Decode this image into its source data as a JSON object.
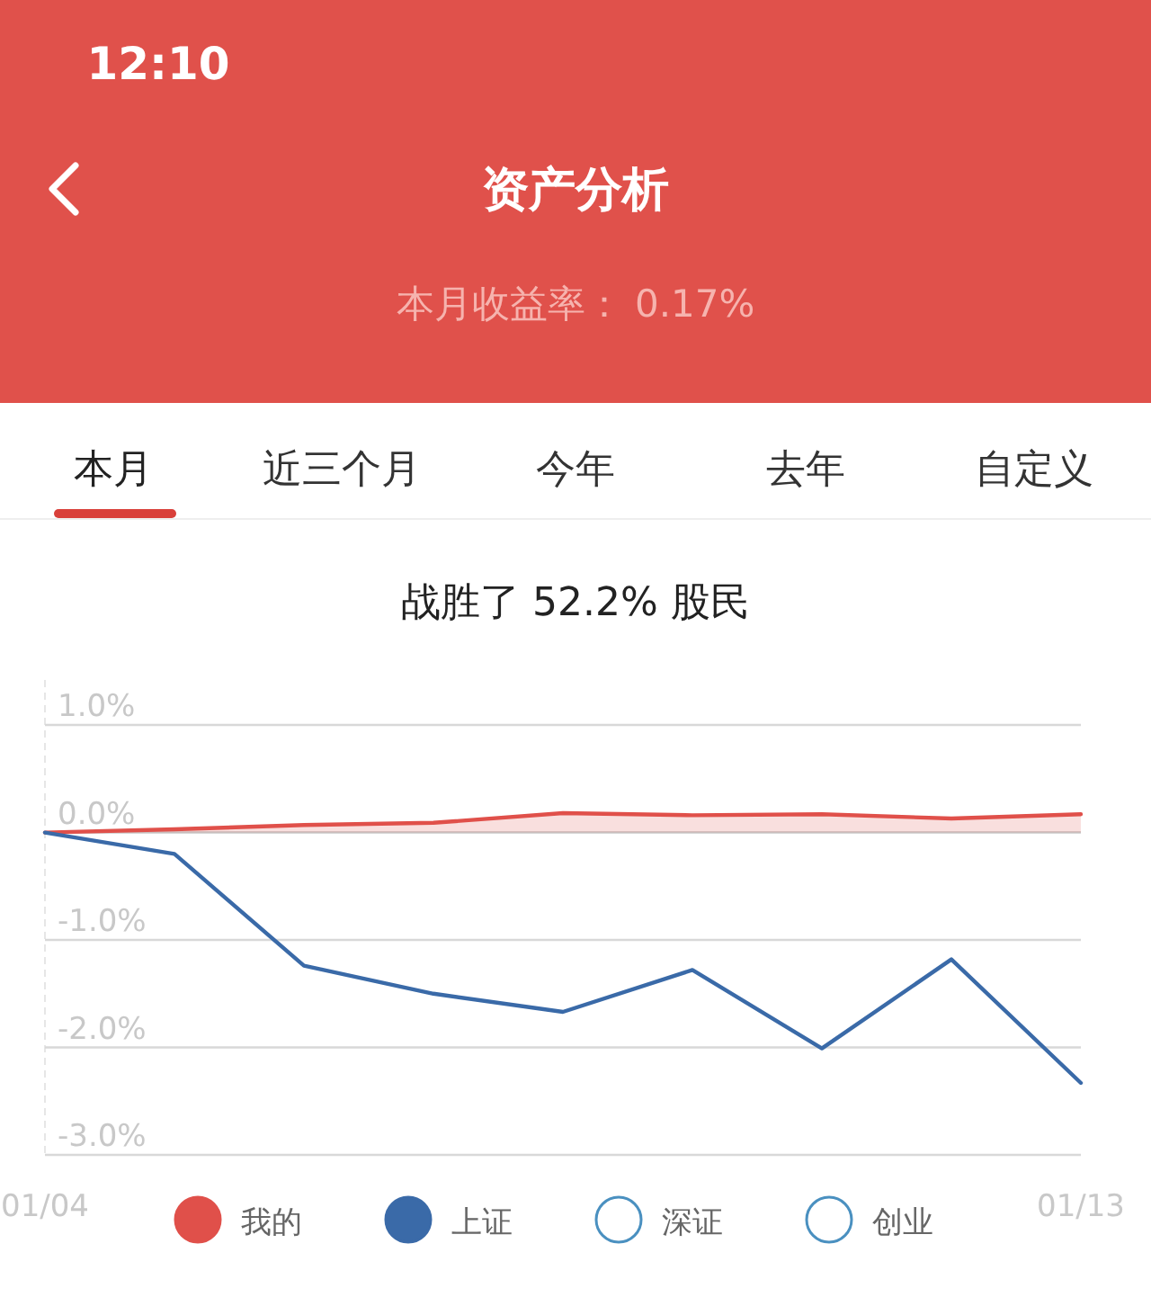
{
  "chart_data": {
    "type": "line",
    "title": "战胜了 52.2% 股民",
    "annotations": [
      "12:10",
      "资产分析",
      "本月收益率： 0.17%",
      "本月",
      "近三个月",
      "今年",
      "去年",
      "自定义"
    ],
    "categories": [
      "01/04",
      null,
      null,
      null,
      null,
      null,
      null,
      null,
      "01/13"
    ],
    "series": [
      {
        "name": "我的",
        "type": "area",
        "color": "#e0504a",
        "values": [
          0,
          0.03,
          0.07,
          0.09,
          0.18,
          0.16,
          0.17,
          0.13,
          0.17
        ]
      },
      {
        "name": "上证",
        "color": "#3a6aa8",
        "values": [
          0,
          -0.2,
          -1.24,
          -1.5,
          -1.67,
          -1.28,
          -2.01,
          -1.18,
          -2.33
        ]
      },
      {
        "name": "深证",
        "color": "#4a90c0",
        "values": [
          null,
          null,
          null,
          null,
          null,
          null,
          null,
          null,
          null
        ]
      },
      {
        "name": "创业",
        "color": "#4a90c0",
        "values": [
          null,
          null,
          null,
          null,
          null,
          null,
          null,
          null,
          null
        ]
      }
    ],
    "ylim": [
      -3,
      1
    ],
    "yticks": [
      {
        "value": 1,
        "label": "1.0%"
      },
      {
        "value": 0,
        "label": "0.0%"
      },
      {
        "value": -1,
        "label": "-1.0%"
      },
      {
        "value": -2,
        "label": "-2.0%"
      },
      {
        "value": -3,
        "label": "-3.0%"
      }
    ],
    "grid": "y",
    "legend": "bottom",
    "marker": "none",
    "line_style": "solid"
  }
}
